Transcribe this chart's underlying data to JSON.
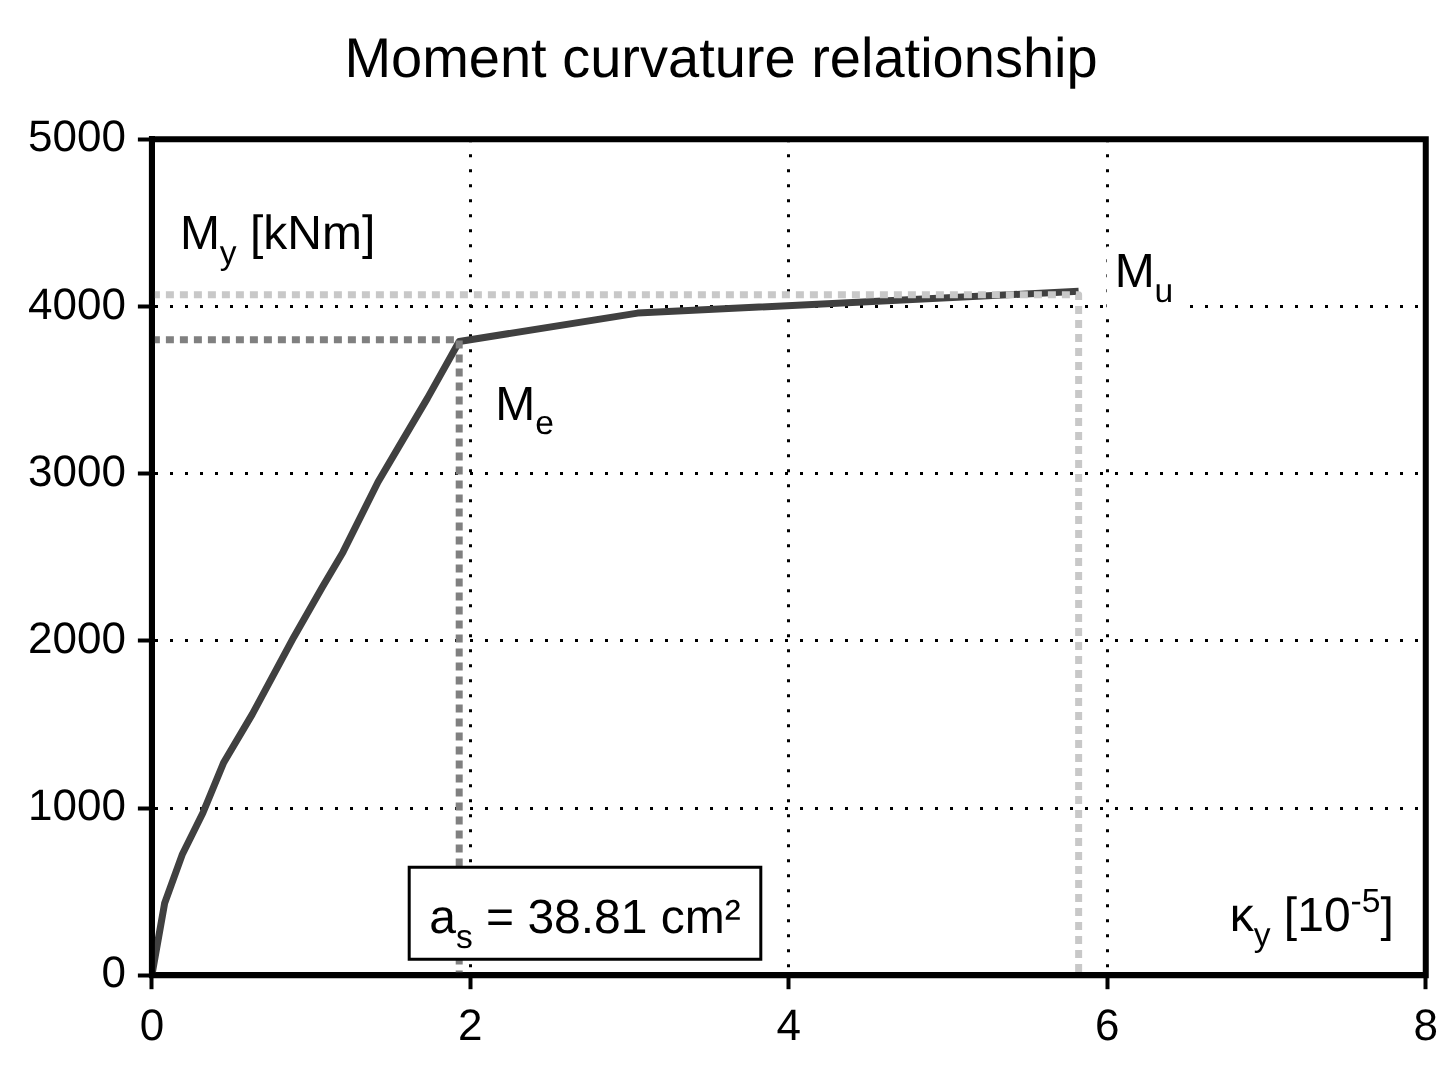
{
  "chart_data": {
    "type": "line",
    "title": "Moment curvature relationship",
    "xlabel": "κ$_{y}$ [10$^{-5}$]",
    "ylabel": "M$_{y}$ [kNm]",
    "xlim": [
      0,
      8
    ],
    "xticks": [
      0,
      2,
      4,
      6,
      8
    ],
    "ylim": [
      0,
      5000
    ],
    "yticks": [
      0,
      1000,
      2000,
      3000,
      4000,
      5000
    ],
    "grid": true,
    "legend": false,
    "marker": "none",
    "series": [
      {
        "color": "#404040",
        "line_style": "solid",
        "x": [
          0,
          0.08,
          0.19,
          0.32,
          0.45,
          0.63,
          0.89,
          1.07,
          1.2,
          1.42,
          1.55,
          1.73,
          1.93,
          3.05,
          5.82
        ],
        "values": [
          0,
          430,
          720,
          970,
          1270,
          1560,
          2020,
          2320,
          2530,
          2950,
          3160,
          3450,
          3790,
          3960,
          4090
        ]
      },
      {
        "color": "#808080",
        "line_style": "dotted",
        "x": [
          0,
          1.93,
          1.93
        ],
        "values": [
          3800,
          3800,
          0
        ]
      },
      {
        "color": "#c8c8c8",
        "line_style": "dotted",
        "x": [
          0,
          5.82,
          5.82
        ],
        "values": [
          4070,
          4070,
          0
        ]
      }
    ],
    "annotations": [
      {
        "text": "M$_{e}$",
        "x": 1.93,
        "y": 3800
      },
      {
        "text": "M$_{u}$",
        "x": 5.82,
        "y": 4090
      },
      "a$_{s}$ = 38.81 cm²"
    ]
  }
}
